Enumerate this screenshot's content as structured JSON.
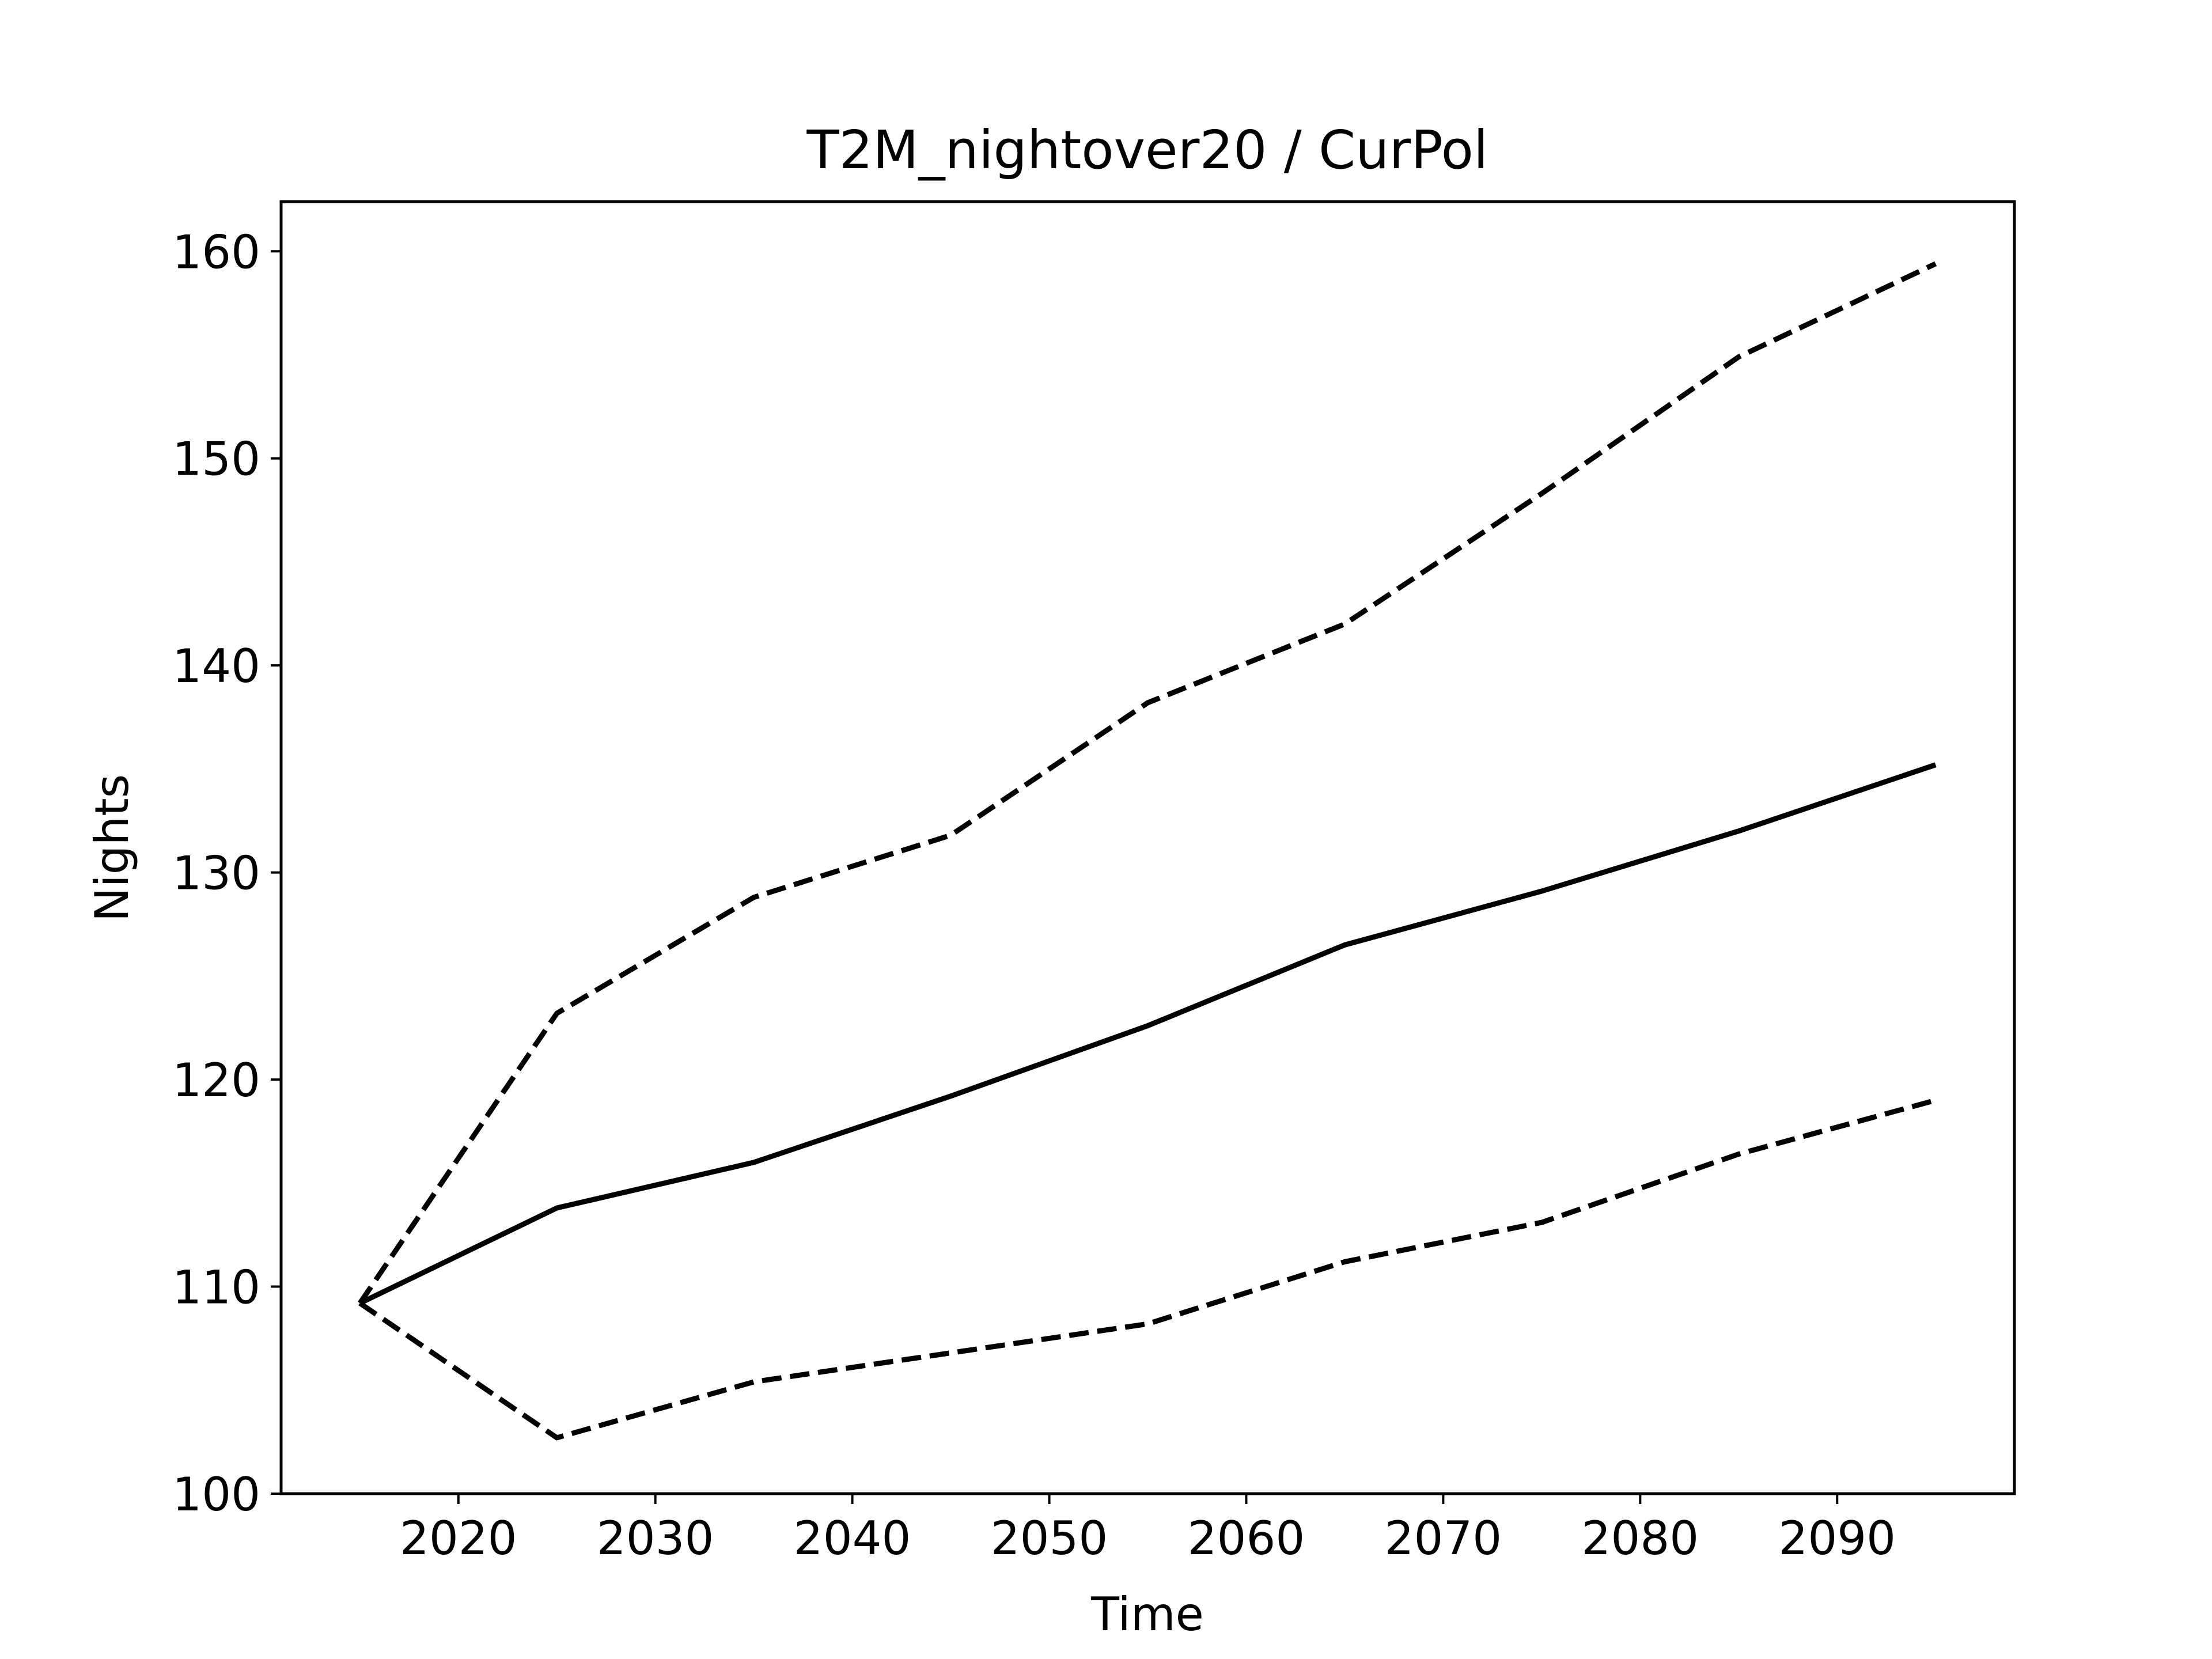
{
  "chart_data": {
    "type": "line",
    "title": "T2M_nightover20 / CurPol",
    "xlabel": "Time",
    "ylabel": "Nights",
    "x": [
      2015,
      2025,
      2035,
      2045,
      2055,
      2065,
      2075,
      2085,
      2095
    ],
    "series": [
      {
        "style": "solid",
        "values": [
          109.2,
          113.8,
          116.0,
          119.2,
          122.6,
          126.5,
          129.1,
          132.0,
          135.2
        ]
      },
      {
        "style": "dashed",
        "values": [
          109.2,
          123.2,
          128.8,
          131.8,
          138.2,
          142.0,
          148.3,
          154.9,
          159.4
        ]
      },
      {
        "style": "dashed",
        "values": [
          109.2,
          102.7,
          105.4,
          106.8,
          108.2,
          111.2,
          113.1,
          116.4,
          119.0
        ]
      }
    ],
    "xlim": [
      2011,
      2099
    ],
    "ylim": [
      100,
      162.4
    ],
    "xticks": [
      2020,
      2030,
      2040,
      2050,
      2060,
      2070,
      2080,
      2090
    ],
    "yticks": [
      100,
      110,
      120,
      130,
      140,
      150,
      160
    ],
    "grid": false,
    "line_color": "#000000"
  }
}
